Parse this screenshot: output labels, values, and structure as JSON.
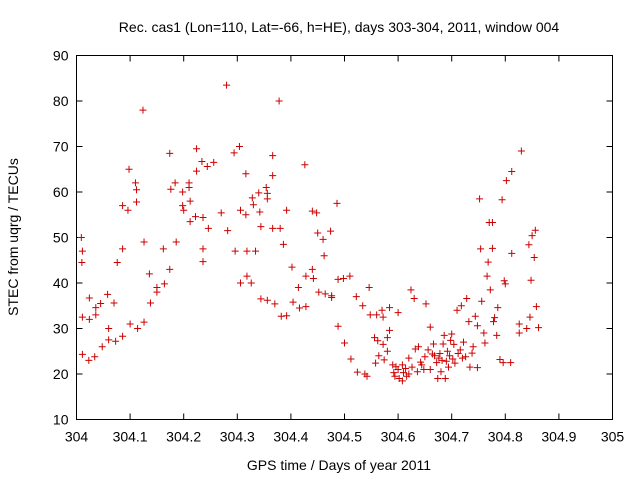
{
  "chart_data": {
    "type": "scatter",
    "title": "Rec. cas1 (Lon=110, Lat=-66, h=HE), days 303-304, 2011, window 004",
    "xlabel": "GPS time / Days of year 2011",
    "ylabel": "STEC from uqrg / TECUs",
    "xlim": [
      304,
      305
    ],
    "ylim": [
      10,
      90
    ],
    "x_ticks": [
      304,
      304.1,
      304.2,
      304.3,
      304.4,
      304.5,
      304.6,
      304.7,
      304.8,
      304.9,
      305
    ],
    "x_tick_labels": [
      "304",
      "304.1",
      "304.2",
      "304.3",
      "304.4",
      "304.5",
      "304.6",
      "304.7",
      "304.8",
      "304.9",
      "305"
    ],
    "y_ticks": [
      10,
      20,
      30,
      40,
      50,
      60,
      70,
      80,
      90
    ],
    "y_tick_labels": [
      "10",
      "20",
      "30",
      "40",
      "50",
      "60",
      "70",
      "80",
      "90"
    ],
    "grid": false,
    "marker": "+",
    "color": "#cc0000",
    "series": [
      {
        "points": [
          [
            304.009,
            50
          ],
          [
            304.011,
            47
          ],
          [
            304.01,
            44.5
          ],
          [
            304.011,
            32.5
          ],
          [
            304.011,
            24.3
          ],
          [
            304.023,
            23
          ],
          [
            304.024,
            36.7
          ],
          [
            304.024,
            32
          ],
          [
            304.034,
            23.8
          ],
          [
            304.036,
            33
          ],
          [
            304.036,
            34.6
          ],
          [
            304.045,
            35.5
          ],
          [
            304.048,
            26
          ],
          [
            304.058,
            37.5
          ],
          [
            304.06,
            27.5
          ],
          [
            304.06,
            30
          ],
          [
            304.07,
            35.6
          ],
          [
            304.073,
            27.2
          ],
          [
            304.076,
            44.5
          ],
          [
            304.086,
            57
          ],
          [
            304.086,
            47.5
          ],
          [
            304.086,
            28.3
          ],
          [
            304.096,
            56
          ],
          [
            304.098,
            65
          ],
          [
            304.1,
            31
          ],
          [
            304.11,
            62
          ],
          [
            304.112,
            60.5
          ],
          [
            304.112,
            57.8
          ],
          [
            304.114,
            30
          ],
          [
            304.124,
            78
          ],
          [
            304.126,
            49
          ],
          [
            304.126,
            31.4
          ],
          [
            304.136,
            42
          ],
          [
            304.138,
            35.6
          ],
          [
            304.15,
            39
          ],
          [
            304.15,
            38
          ],
          [
            304.162,
            47.5
          ],
          [
            304.164,
            39.8
          ],
          [
            304.174,
            68.5
          ],
          [
            304.176,
            60.6
          ],
          [
            304.174,
            43
          ],
          [
            304.184,
            62
          ],
          [
            304.186,
            49
          ],
          [
            304.198,
            60
          ],
          [
            304.198,
            57
          ],
          [
            304.2,
            56
          ],
          [
            304.21,
            62
          ],
          [
            304.21,
            61
          ],
          [
            304.212,
            58
          ],
          [
            304.212,
            53.5
          ],
          [
            304.224,
            69.5
          ],
          [
            304.224,
            64.6
          ],
          [
            304.222,
            54.6
          ],
          [
            304.234,
            66.7
          ],
          [
            304.236,
            54.4
          ],
          [
            304.236,
            47.5
          ],
          [
            304.236,
            44.7
          ],
          [
            304.244,
            65.6
          ],
          [
            304.246,
            52
          ],
          [
            304.256,
            66.5
          ],
          [
            304.27,
            55.4
          ],
          [
            304.28,
            83.5
          ],
          [
            304.282,
            51.5
          ],
          [
            304.294,
            68.6
          ],
          [
            304.296,
            47
          ],
          [
            304.304,
            70
          ],
          [
            304.306,
            56
          ],
          [
            304.306,
            40
          ],
          [
            304.316,
            64
          ],
          [
            304.316,
            55
          ],
          [
            304.318,
            47
          ],
          [
            304.318,
            41.5
          ],
          [
            304.326,
            40
          ],
          [
            304.328,
            58.7
          ],
          [
            304.33,
            57.2
          ],
          [
            304.334,
            47
          ],
          [
            304.34,
            59.8
          ],
          [
            304.342,
            55.6
          ],
          [
            304.344,
            52.4
          ],
          [
            304.344,
            36.5
          ],
          [
            304.354,
            61
          ],
          [
            304.356,
            59.7
          ],
          [
            304.356,
            58.5
          ],
          [
            304.356,
            36.2
          ],
          [
            304.366,
            68
          ],
          [
            304.366,
            63.6
          ],
          [
            304.366,
            52
          ],
          [
            304.37,
            35.4
          ],
          [
            304.378,
            80
          ],
          [
            304.38,
            52
          ],
          [
            304.382,
            32.7
          ],
          [
            304.386,
            48.5
          ],
          [
            304.392,
            56
          ],
          [
            304.392,
            32.8
          ],
          [
            304.402,
            43.5
          ],
          [
            304.404,
            35.8
          ],
          [
            304.414,
            39
          ],
          [
            304.416,
            34.5
          ],
          [
            304.426,
            66
          ],
          [
            304.428,
            41.5
          ],
          [
            304.428,
            34.8
          ],
          [
            304.44,
            55.8
          ],
          [
            304.44,
            43
          ],
          [
            304.442,
            41
          ],
          [
            304.448,
            55.4
          ],
          [
            304.45,
            51
          ],
          [
            304.452,
            38
          ],
          [
            304.46,
            49.6
          ],
          [
            304.462,
            46
          ],
          [
            304.464,
            37.6
          ],
          [
            304.474,
            51.4
          ],
          [
            304.476,
            37.2
          ],
          [
            304.476,
            36.8
          ],
          [
            304.486,
            57.5
          ],
          [
            304.488,
            40.8
          ],
          [
            304.488,
            30.5
          ],
          [
            304.498,
            41
          ],
          [
            304.5,
            26.8
          ],
          [
            304.51,
            41.5
          ],
          [
            304.512,
            23.3
          ],
          [
            304.522,
            37
          ],
          [
            304.524,
            20.4
          ],
          [
            304.534,
            35
          ],
          [
            304.538,
            20
          ],
          [
            304.542,
            19.5
          ],
          [
            304.546,
            39
          ],
          [
            304.548,
            33
          ],
          [
            304.556,
            28
          ],
          [
            304.558,
            22.4
          ],
          [
            304.56,
            33
          ],
          [
            304.562,
            27.3
          ],
          [
            304.564,
            24
          ],
          [
            304.57,
            34
          ],
          [
            304.572,
            32.5
          ],
          [
            304.572,
            26.5
          ],
          [
            304.574,
            23.1
          ],
          [
            304.58,
            28
          ],
          [
            304.58,
            25
          ],
          [
            304.584,
            29.6
          ],
          [
            304.584,
            34.6
          ],
          [
            304.59,
            22
          ],
          [
            304.592,
            20.3
          ],
          [
            304.594,
            19.5
          ],
          [
            304.596,
            21.6
          ],
          [
            304.6,
            21
          ],
          [
            304.6,
            33.5
          ],
          [
            304.602,
            19
          ],
          [
            304.608,
            22
          ],
          [
            304.608,
            18.5
          ],
          [
            304.61,
            20.3
          ],
          [
            304.614,
            21.2
          ],
          [
            304.616,
            19.5
          ],
          [
            304.62,
            20
          ],
          [
            304.62,
            23.5
          ],
          [
            304.624,
            38.5
          ],
          [
            304.626,
            21.5
          ],
          [
            304.63,
            36.6
          ],
          [
            304.632,
            25.5
          ],
          [
            304.636,
            20.5
          ],
          [
            304.638,
            26
          ],
          [
            304.642,
            22.6
          ],
          [
            304.644,
            22
          ],
          [
            304.648,
            21
          ],
          [
            304.65,
            23.8
          ],
          [
            304.652,
            35.4
          ],
          [
            304.656,
            25.3
          ],
          [
            304.66,
            21
          ],
          [
            304.66,
            30.3
          ],
          [
            304.664,
            24.4
          ],
          [
            304.666,
            26.6
          ],
          [
            304.668,
            24
          ],
          [
            304.672,
            22.5
          ],
          [
            304.674,
            19
          ],
          [
            304.676,
            23.5
          ],
          [
            304.678,
            24.5
          ],
          [
            304.68,
            20.5
          ],
          [
            304.682,
            23
          ],
          [
            304.684,
            26.6
          ],
          [
            304.686,
            28.5
          ],
          [
            304.688,
            19
          ],
          [
            304.69,
            22.8
          ],
          [
            304.692,
            25
          ],
          [
            304.694,
            21.5
          ],
          [
            304.696,
            24
          ],
          [
            304.698,
            27.4
          ],
          [
            304.7,
            28.8
          ],
          [
            304.702,
            23.3
          ],
          [
            304.704,
            26.5
          ],
          [
            304.706,
            22.4
          ],
          [
            304.71,
            34
          ],
          [
            304.712,
            24.5
          ],
          [
            304.716,
            25.3
          ],
          [
            304.718,
            35
          ],
          [
            304.72,
            23.5
          ],
          [
            304.722,
            27
          ],
          [
            304.726,
            23.8
          ],
          [
            304.728,
            36.6
          ],
          [
            304.732,
            31.5
          ],
          [
            304.734,
            21.5
          ],
          [
            304.738,
            24.6
          ],
          [
            304.74,
            26
          ],
          [
            304.744,
            32.7
          ],
          [
            304.748,
            21.4
          ],
          [
            304.748,
            30.6
          ],
          [
            304.752,
            58.5
          ],
          [
            304.754,
            47.5
          ],
          [
            304.756,
            36
          ],
          [
            304.76,
            29
          ],
          [
            304.762,
            26.8
          ],
          [
            304.766,
            41.5
          ],
          [
            304.768,
            44.6
          ],
          [
            304.77,
            53.3
          ],
          [
            304.772,
            38.5
          ],
          [
            304.776,
            47.6
          ],
          [
            304.776,
            53.3
          ],
          [
            304.778,
            31.5
          ],
          [
            304.78,
            32.4
          ],
          [
            304.784,
            28.5
          ],
          [
            304.786,
            34.6
          ],
          [
            304.79,
            23.2
          ],
          [
            304.794,
            58.3
          ],
          [
            304.796,
            22.5
          ],
          [
            304.798,
            40.5
          ],
          [
            304.8,
            39.8
          ],
          [
            304.802,
            62.5
          ],
          [
            304.81,
            22.5
          ],
          [
            304.812,
            46.5
          ],
          [
            304.812,
            64.5
          ],
          [
            304.826,
            29
          ],
          [
            304.826,
            31
          ],
          [
            304.83,
            69
          ],
          [
            304.84,
            30
          ],
          [
            304.844,
            48.4
          ],
          [
            304.846,
            32.5
          ],
          [
            304.848,
            40.6
          ],
          [
            304.85,
            50.4
          ],
          [
            304.854,
            45.6
          ],
          [
            304.856,
            51.6
          ],
          [
            304.858,
            34.8
          ],
          [
            304.862,
            30.2
          ]
        ]
      }
    ]
  }
}
